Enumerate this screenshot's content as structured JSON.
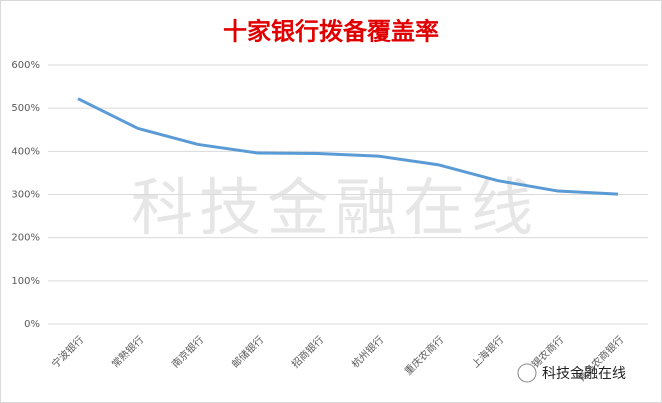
{
  "chart_data": {
    "type": "line",
    "title": "十家银行拨备覆盖率",
    "categories": [
      "宁波银行",
      "常熟银行",
      "南京银行",
      "邮储银行",
      "招商银行",
      "杭州银行",
      "重庆农商行",
      "上海银行",
      "无锡农商行",
      "青岛农商银行"
    ],
    "series": [
      {
        "name": "拨备覆盖率",
        "color": "#5b9bd5",
        "values": [
          522,
          453,
          416,
          396,
          395,
          389,
          369,
          332,
          308,
          301
        ]
      }
    ],
    "ylim": [
      0,
      600
    ],
    "yticks": [
      {
        "value": 0,
        "label": "0%"
      },
      {
        "value": 100,
        "label": "100%"
      },
      {
        "value": 200,
        "label": "200%"
      },
      {
        "value": 300,
        "label": "300%"
      },
      {
        "value": 400,
        "label": "400%"
      },
      {
        "value": 500,
        "label": "500%"
      },
      {
        "value": 600,
        "label": "600%"
      }
    ],
    "grid": true,
    "watermark": "科技金融在线",
    "logo_text": "科技金融在线"
  }
}
